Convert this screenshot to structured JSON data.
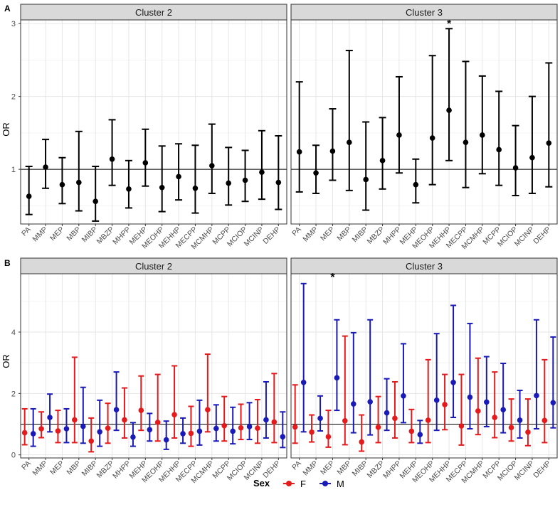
{
  "figure": {
    "legend": {
      "title": "Sex",
      "entries": [
        {
          "label": "F",
          "color": "#e41a1c"
        },
        {
          "label": "M",
          "color": "#1a1ab8"
        }
      ]
    }
  },
  "chart_data": [
    {
      "panel": "A",
      "type": "errorbar",
      "ylabel": "OR",
      "reference_line": 1,
      "ylim": [
        0.25,
        3.05
      ],
      "yticks": [
        1,
        2,
        3
      ],
      "grid": true,
      "categories": [
        "PA",
        "MMP",
        "MEP",
        "MBP",
        "MIBP",
        "MBZP",
        "MHPP",
        "MEHP",
        "MEOHP",
        "MEHHP",
        "MECPP",
        "MCMHP",
        "MCPP",
        "MCIOP",
        "MCINP",
        "DEHP"
      ],
      "facets": [
        {
          "title": "Cluster 2",
          "series": [
            {
              "name": "",
              "color": "#000000",
              "estimate": [
                0.63,
                1.03,
                0.79,
                0.82,
                0.56,
                1.14,
                0.73,
                1.09,
                0.75,
                0.9,
                0.74,
                1.05,
                0.81,
                0.85,
                0.96,
                0.82
              ],
              "lower": [
                0.38,
                0.74,
                0.53,
                0.43,
                0.29,
                0.78,
                0.47,
                0.77,
                0.42,
                0.58,
                0.4,
                0.67,
                0.51,
                0.56,
                0.59,
                0.45
              ],
              "upper": [
                1.04,
                1.41,
                1.16,
                1.52,
                1.04,
                1.68,
                1.12,
                1.55,
                1.32,
                1.35,
                1.33,
                1.62,
                1.3,
                1.26,
                1.53,
                1.46
              ]
            }
          ],
          "annotations": []
        },
        {
          "title": "Cluster 3",
          "series": [
            {
              "name": "",
              "color": "#000000",
              "estimate": [
                1.24,
                0.95,
                1.25,
                1.37,
                0.86,
                1.12,
                1.47,
                0.79,
                1.43,
                1.81,
                1.37,
                1.47,
                1.27,
                1.02,
                1.16,
                1.36
              ],
              "lower": [
                0.69,
                0.67,
                0.85,
                0.71,
                0.44,
                0.73,
                0.95,
                0.54,
                0.79,
                1.12,
                0.75,
                0.94,
                0.78,
                0.64,
                0.67,
                0.76
              ],
              "upper": [
                2.2,
                1.33,
                1.83,
                2.63,
                1.65,
                1.71,
                2.27,
                1.14,
                2.56,
                2.93,
                2.48,
                2.28,
                2.07,
                1.6,
                2.0,
                2.46
              ]
            }
          ],
          "annotations": [
            {
              "category": "MEHHP",
              "text": "*"
            }
          ]
        }
      ]
    },
    {
      "panel": "B",
      "type": "errorbar",
      "ylabel": "OR",
      "reference_line": 1,
      "ylim": [
        -0.1,
        5.9
      ],
      "yticks": [
        0,
        2,
        4
      ],
      "grid": true,
      "categories": [
        "PA",
        "MMP",
        "MEP",
        "MBP",
        "MIBP",
        "MBZP",
        "MHPP",
        "MEHP",
        "MEOHP",
        "MEHHP",
        "MECPP",
        "MCMHP",
        "MCPP",
        "MCIOP",
        "MCINP",
        "DEHP"
      ],
      "facets": [
        {
          "title": "Cluster 2",
          "series": [
            {
              "name": "F",
              "color": "#e41a1c",
              "estimate": [
                0.72,
                0.85,
                0.78,
                1.14,
                0.45,
                0.87,
                1.14,
                1.45,
                1.06,
                1.31,
                0.7,
                1.47,
                0.95,
                0.88,
                0.87,
                1.07
              ],
              "lower": [
                0.33,
                0.56,
                0.4,
                0.4,
                0.1,
                0.38,
                0.55,
                0.8,
                0.45,
                0.55,
                0.28,
                0.75,
                0.45,
                0.5,
                0.38,
                0.4
              ],
              "upper": [
                1.5,
                1.4,
                1.45,
                3.18,
                1.2,
                1.68,
                2.18,
                2.57,
                2.62,
                2.9,
                1.58,
                3.28,
                1.9,
                1.65,
                1.8,
                2.65
              ]
            },
            {
              "name": "M",
              "color": "#1a1ab8",
              "estimate": [
                0.69,
                1.22,
                0.85,
                0.93,
                0.75,
                1.47,
                0.58,
                0.82,
                0.49,
                0.69,
                0.77,
                0.86,
                0.77,
                0.92,
                1.14,
                0.59
              ],
              "lower": [
                0.28,
                0.75,
                0.4,
                0.38,
                0.28,
                0.8,
                0.28,
                0.45,
                0.18,
                0.38,
                0.32,
                0.45,
                0.36,
                0.5,
                0.55,
                0.24
              ],
              "upper": [
                1.5,
                1.98,
                1.5,
                2.2,
                1.78,
                2.7,
                1.05,
                1.35,
                1.1,
                1.2,
                1.78,
                1.63,
                1.55,
                1.7,
                2.38,
                1.4
              ]
            }
          ],
          "annotations": []
        },
        {
          "title": "Cluster 3",
          "series": [
            {
              "name": "F",
              "color": "#e41a1c",
              "estimate": [
                0.91,
                0.74,
                0.59,
                1.11,
                0.42,
                0.9,
                1.19,
                0.77,
                1.13,
                1.64,
                0.94,
                1.43,
                1.22,
                0.89,
                0.74,
                1.12
              ],
              "lower": [
                0.38,
                0.42,
                0.25,
                0.33,
                0.12,
                0.4,
                0.55,
                0.4,
                0.4,
                0.82,
                0.32,
                0.66,
                0.56,
                0.45,
                0.3,
                0.4
              ],
              "upper": [
                2.28,
                1.3,
                1.45,
                3.87,
                1.3,
                1.9,
                2.38,
                1.48,
                3.1,
                2.62,
                2.62,
                3.15,
                2.7,
                1.82,
                1.82,
                3.1
              ]
            },
            {
              "name": "M",
              "color": "#1a1ab8",
              "estimate": [
                2.36,
                1.19,
                2.51,
                1.66,
                1.73,
                1.37,
                1.92,
                0.66,
                1.78,
                2.36,
                1.88,
                1.72,
                1.47,
                1.13,
                1.93,
                1.7
              ],
              "lower": [
                0.75,
                0.78,
                1.45,
                0.72,
                0.65,
                0.8,
                1.05,
                0.38,
                0.8,
                1.22,
                0.85,
                0.92,
                0.72,
                0.55,
                0.85,
                0.88
              ],
              "upper": [
                5.58,
                1.92,
                4.4,
                3.98,
                4.4,
                2.48,
                3.62,
                1.12,
                3.95,
                4.87,
                4.28,
                3.2,
                2.98,
                2.1,
                4.4,
                3.84
              ]
            }
          ],
          "annotations": [
            {
              "category": "MEP",
              "text": "*"
            }
          ]
        }
      ]
    }
  ]
}
